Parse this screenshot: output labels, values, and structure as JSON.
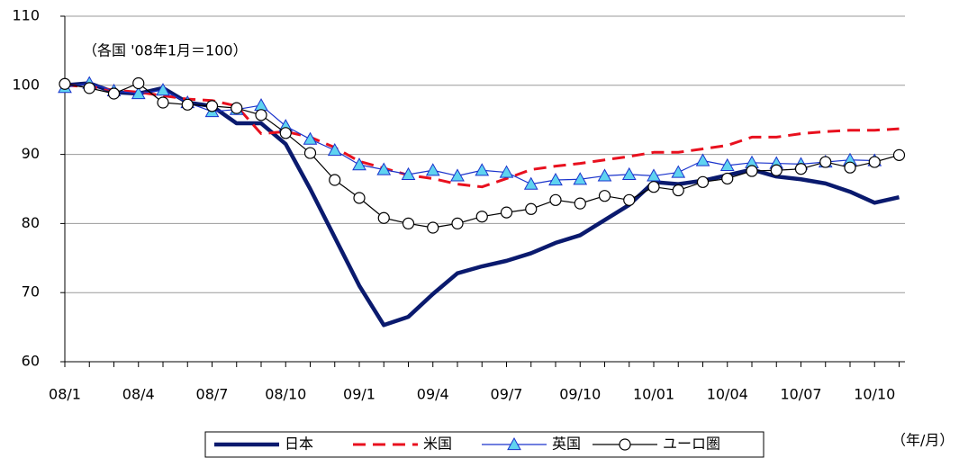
{
  "chart_data": {
    "type": "line",
    "annotation": "（各国 '08年1月＝100）",
    "x_unit_label": "（年/月）",
    "categories": [
      "08/1",
      null,
      null,
      "08/4",
      null,
      null,
      "08/7",
      null,
      null,
      "08/10",
      null,
      null,
      "09/1",
      null,
      null,
      "09/4",
      null,
      null,
      "09/7",
      null,
      null,
      "09/10",
      null,
      null,
      "10/01",
      null,
      null,
      "10/04",
      null,
      null,
      "10/07",
      null,
      null,
      "10/10",
      null
    ],
    "ylim": [
      60,
      110
    ],
    "yticks": [
      60,
      70,
      80,
      90,
      100,
      110
    ],
    "grid": true,
    "series": [
      {
        "name": "日本",
        "color": "#0a1a6e",
        "style": "thick",
        "values": [
          100,
          100.3,
          99.0,
          98.8,
          99.6,
          97.5,
          97.0,
          94.5,
          94.5,
          91.5,
          85,
          78,
          71,
          65.3,
          66.5,
          69.8,
          72.8,
          73.8,
          74.6,
          75.7,
          77.2,
          78.3,
          80.5,
          82.7,
          86.0,
          85.7,
          86.2,
          87.0,
          87.8,
          86.8,
          86.4,
          85.8,
          84.6,
          83.0,
          83.8
        ]
      },
      {
        "name": "米国",
        "color": "#e8101e",
        "style": "dashed",
        "values": [
          100,
          99.8,
          99.3,
          99,
          98.5,
          98,
          97.8,
          97,
          93,
          93.3,
          92.5,
          91,
          89,
          88,
          87,
          86.5,
          85.7,
          85.3,
          86.5,
          87.8,
          88.3,
          88.7,
          89.2,
          89.7,
          90.3,
          90.3,
          90.8,
          91.3,
          92.5,
          92.5,
          93,
          93.3,
          93.5,
          93.5,
          93.7
        ]
      },
      {
        "name": "英国",
        "color": "#1a33cc",
        "style": "triangle",
        "values": [
          99.7,
          100.3,
          99.2,
          98.8,
          99.3,
          97.5,
          96.2,
          96.5,
          97.1,
          94.1,
          92.2,
          90.6,
          88.5,
          87.8,
          87.1,
          87.7,
          86.9,
          87.7,
          87.4,
          85.7,
          86.3,
          86.4,
          86.9,
          87.1,
          86.9,
          87.4,
          89.1,
          88.4,
          88.8,
          88.7,
          88.6,
          88.9,
          89.2,
          89.1,
          null
        ]
      },
      {
        "name": "ユーロ圏",
        "color": "#000000",
        "style": "circle",
        "values": [
          100.2,
          99.6,
          98.8,
          100.3,
          97.5,
          97.2,
          97.0,
          96.7,
          95.7,
          93.1,
          90.2,
          86.3,
          83.7,
          80.8,
          80.0,
          79.4,
          80.0,
          81.0,
          81.6,
          82.1,
          83.4,
          82.9,
          84.0,
          83.4,
          85.3,
          84.8,
          86.0,
          86.5,
          87.6,
          87.7,
          87.9,
          88.9,
          88.1,
          88.9,
          89.9
        ]
      }
    ]
  }
}
